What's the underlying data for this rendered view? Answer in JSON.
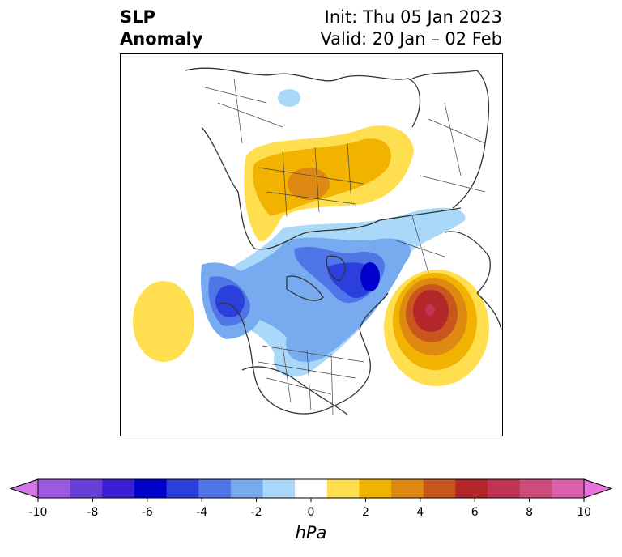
{
  "title": {
    "left_line1": "SLP",
    "left_line2": "Anomaly",
    "right_line1": "Init: Thu 05 Jan 2023",
    "right_line2": "Valid: 20 Jan – 02 Feb"
  },
  "colorbar": {
    "unit": "hPa",
    "ticks": [
      "-10",
      "-8",
      "-6",
      "-4",
      "-2",
      "0",
      "2",
      "4",
      "6",
      "8",
      "10"
    ],
    "min_color": "#d576e8",
    "max_color": "#e772e0",
    "colors": [
      "#d576e8",
      "#9e59e3",
      "#6a3fd8",
      "#3b1fd6",
      "#0000cd",
      "#2b3fdd",
      "#4f75e6",
      "#78aaf0",
      "#a9d8f8",
      "#ffffff",
      "#ffdf4f",
      "#f1b200",
      "#de8a12",
      "#c8561d",
      "#b3262a",
      "#c23454",
      "#cf4b7c",
      "#dc60ad",
      "#e772e0"
    ]
  },
  "map": {
    "projection": "polar-stereographic",
    "features": {
      "coastline_color": "#333333",
      "border_color": "#444444"
    },
    "anomalies": [
      {
        "region": "north-atlantic",
        "sign": "positive",
        "peak_hpa": 7
      },
      {
        "region": "eurasia",
        "sign": "positive",
        "peak_hpa": 4
      },
      {
        "region": "north-pacific",
        "sign": "positive",
        "peak_hpa": 2
      },
      {
        "region": "arctic-canada",
        "sign": "negative",
        "peak_hpa": -6
      },
      {
        "region": "gulf-of-alaska",
        "sign": "negative",
        "peak_hpa": -6
      }
    ]
  }
}
